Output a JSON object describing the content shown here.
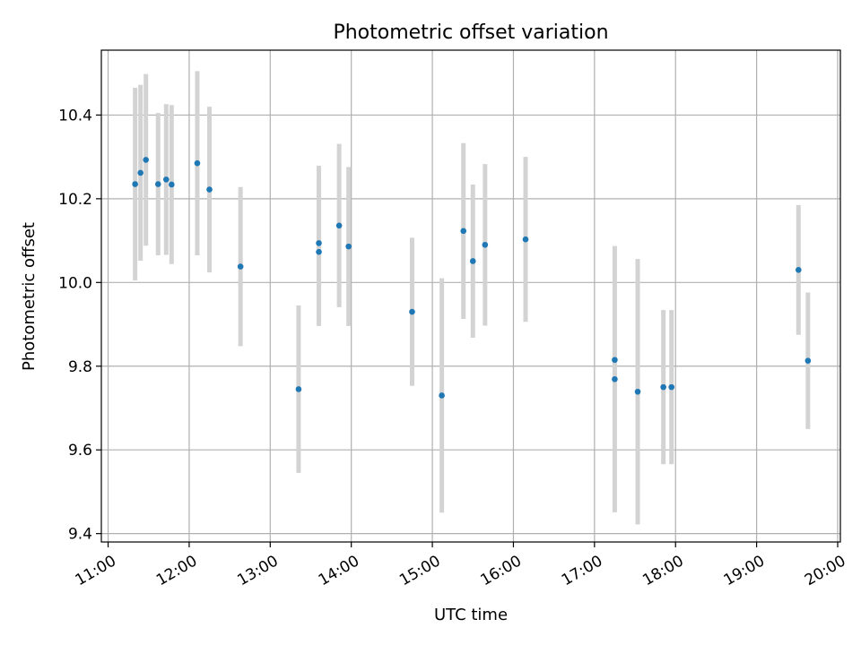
{
  "chart_data": {
    "type": "scatter",
    "title": "Photometric offset variation",
    "xlabel": "UTC time",
    "ylabel": "Photometric offset",
    "x_ticks": [
      "11:00",
      "12:00",
      "13:00",
      "14:00",
      "15:00",
      "16:00",
      "17:00",
      "18:00",
      "19:00",
      "20:00"
    ],
    "y_ticks": [
      "9.4",
      "9.6",
      "9.8",
      "10.0",
      "10.2",
      "10.4"
    ],
    "xlim": [
      "10:55",
      "20:02"
    ],
    "ylim": [
      9.38,
      10.555
    ],
    "grid": true,
    "point_color": "#1f77b4",
    "errorbar_color": "#d3d3d3",
    "points": [
      {
        "time": "11:20",
        "y": 10.235,
        "err": 0.23
      },
      {
        "time": "11:24",
        "y": 10.262,
        "err": 0.21
      },
      {
        "time": "11:28",
        "y": 10.293,
        "err": 0.205
      },
      {
        "time": "11:37",
        "y": 10.235,
        "err": 0.17
      },
      {
        "time": "11:43",
        "y": 10.246,
        "err": 0.18
      },
      {
        "time": "11:47",
        "y": 10.234,
        "err": 0.19
      },
      {
        "time": "12:06",
        "y": 10.285,
        "err": 0.22
      },
      {
        "time": "12:15",
        "y": 10.222,
        "err": 0.198
      },
      {
        "time": "12:38",
        "y": 10.038,
        "err": 0.19
      },
      {
        "time": "13:21",
        "y": 9.745,
        "err": 0.2
      },
      {
        "time": "13:36",
        "y": 10.073,
        "err": 0.177
      },
      {
        "time": "13:36",
        "y": 10.094,
        "err": 0.185
      },
      {
        "time": "13:51",
        "y": 10.136,
        "err": 0.195
      },
      {
        "time": "13:58",
        "y": 10.086,
        "err": 0.19
      },
      {
        "time": "14:45",
        "y": 9.93,
        "err": 0.177
      },
      {
        "time": "15:07",
        "y": 9.73,
        "err": 0.28
      },
      {
        "time": "15:23",
        "y": 10.123,
        "err": 0.21
      },
      {
        "time": "15:30",
        "y": 10.051,
        "err": 0.183
      },
      {
        "time": "15:39",
        "y": 10.09,
        "err": 0.193
      },
      {
        "time": "16:09",
        "y": 10.103,
        "err": 0.197
      },
      {
        "time": "17:15",
        "y": 9.815,
        "err": 0.0
      },
      {
        "time": "17:15",
        "y": 9.769,
        "err": 0.318
      },
      {
        "time": "17:32",
        "y": 9.739,
        "err": 0.317
      },
      {
        "time": "17:51",
        "y": 9.75,
        "err": 0.184
      },
      {
        "time": "17:57",
        "y": 9.75,
        "err": 0.184
      },
      {
        "time": "19:31",
        "y": 10.03,
        "err": 0.155
      },
      {
        "time": "19:38",
        "y": 9.813,
        "err": 0.163
      }
    ]
  }
}
